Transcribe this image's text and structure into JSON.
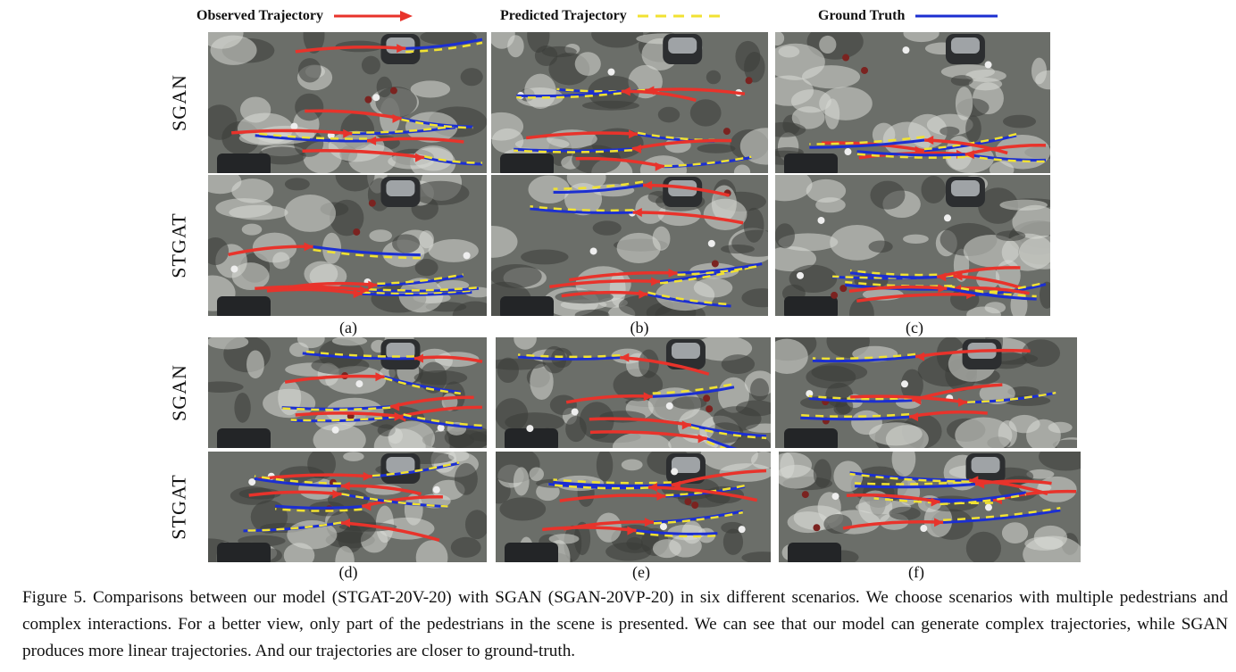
{
  "legend": [
    {
      "label": "Observed Trajectory",
      "color": "#e8332b",
      "style": "arrow"
    },
    {
      "label": "Predicted Trajectory",
      "color": "#f1e232",
      "style": "dashed"
    },
    {
      "label": "Ground Truth",
      "color": "#1c2fd1",
      "style": "solid"
    }
  ],
  "row_labels": [
    "SGAN",
    "STGAT",
    "SGAN",
    "STGAT"
  ],
  "sub_labels": [
    "(a)",
    "(b)",
    "(c)",
    "(d)",
    "(e)",
    "(f)"
  ],
  "caption": "Figure 5. Comparisons between our model (STGAT-20V-20) with SGAN (SGAN-20VP-20) in six different scenarios. We choose scenarios with multiple pedestrians and complex interactions. For a better view, only part of the pedestrians in the scene is presented. We can see that our model can generate complex trajectories, while SGAN produces more linear trajectories. And our trajectories are closer to ground-truth.",
  "colors": {
    "observed": "#e8332b",
    "predicted": "#f1e232",
    "ground_truth": "#1c2fd1",
    "pavement": "#6b6e69"
  }
}
